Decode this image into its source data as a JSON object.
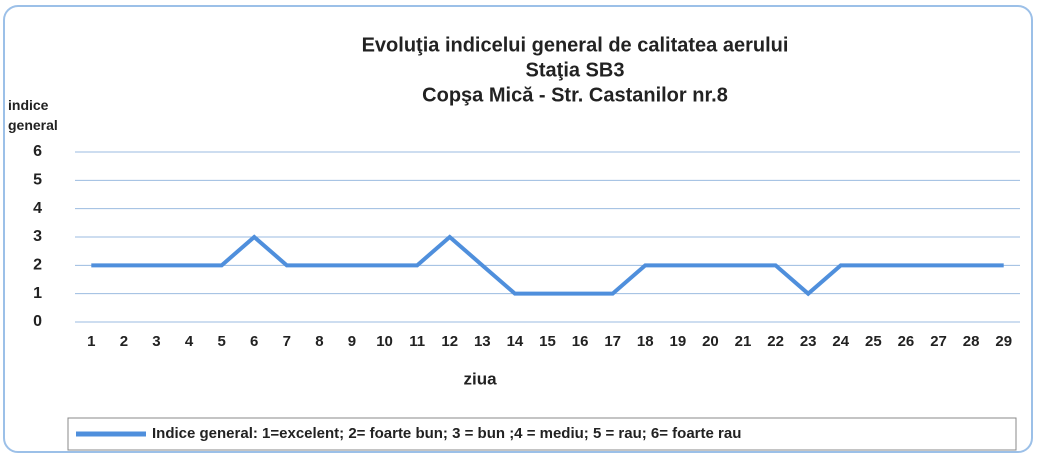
{
  "chart_data": {
    "type": "line",
    "title": [
      "Evoluţia  indicelui general de calitatea aerului",
      "Staţia SB3",
      "Copşa Mică - Str. Castanilor nr.8"
    ],
    "ylabel": "indice general",
    "xlabel": "ziua",
    "x": [
      1,
      2,
      3,
      4,
      5,
      6,
      7,
      8,
      9,
      10,
      11,
      12,
      13,
      14,
      15,
      16,
      17,
      18,
      19,
      20,
      21,
      22,
      23,
      24,
      25,
      26,
      27,
      28,
      29
    ],
    "series": [
      {
        "name": "Indice general: 1=excelent; 2= foarte bun; 3 = bun ;4 = mediu; 5 = rau; 6= foarte rau",
        "color": "#4f8fdc",
        "values": [
          2,
          2,
          2,
          2,
          2,
          3,
          2,
          2,
          2,
          2,
          2,
          3,
          2,
          1,
          1,
          1,
          1,
          2,
          2,
          2,
          2,
          2,
          1,
          2,
          2,
          2,
          2,
          2,
          2
        ]
      }
    ],
    "ylim": [
      0,
      6
    ],
    "yticks": [
      0,
      1,
      2,
      3,
      4,
      5,
      6
    ],
    "grid": true,
    "legend": "bottom"
  }
}
